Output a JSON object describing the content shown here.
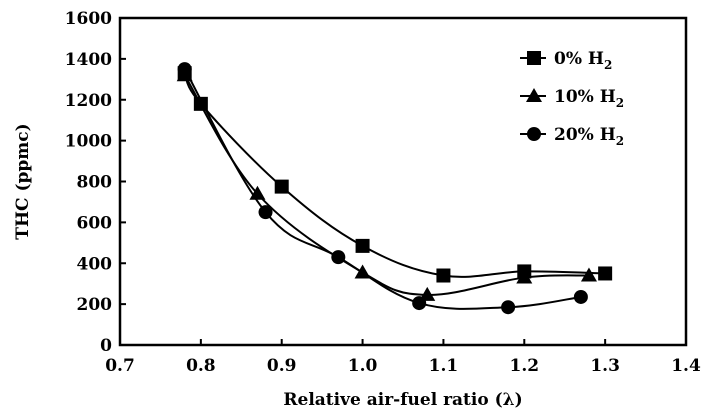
{
  "chart_data": {
    "type": "line",
    "title": "",
    "xlabel": "Relative air-fuel ratio (λ)",
    "ylabel": "THC (ppmc)",
    "xlim": [
      0.7,
      1.4
    ],
    "ylim": [
      0,
      1600
    ],
    "xticks": [
      "0.7",
      "0.8",
      "0.9",
      "1.0",
      "1.1",
      "1.2",
      "1.3",
      "1.4"
    ],
    "yticks": [
      "0",
      "200",
      "400",
      "600",
      "800",
      "1000",
      "1200",
      "1400",
      "1600"
    ],
    "grid": false,
    "legend_position": "top-right",
    "series": [
      {
        "name": "0% H2",
        "name_main": "0% H",
        "name_sub": "2",
        "marker": "square",
        "x": [
          0.78,
          0.8,
          0.9,
          1.0,
          1.1,
          1.2,
          1.3
        ],
        "y": [
          1330,
          1180,
          775,
          485,
          340,
          360,
          350
        ]
      },
      {
        "name": "10% H2",
        "name_main": "10% H",
        "name_sub": "2",
        "marker": "triangle",
        "x": [
          0.78,
          0.87,
          1.0,
          1.08,
          1.2,
          1.28
        ],
        "y": [
          1320,
          740,
          355,
          245,
          330,
          340
        ]
      },
      {
        "name": "20% H2",
        "name_main": "20% H",
        "name_sub": "2",
        "marker": "circle",
        "x": [
          0.78,
          0.88,
          0.97,
          1.07,
          1.18,
          1.27
        ],
        "y": [
          1350,
          650,
          430,
          205,
          185,
          235
        ]
      }
    ]
  }
}
